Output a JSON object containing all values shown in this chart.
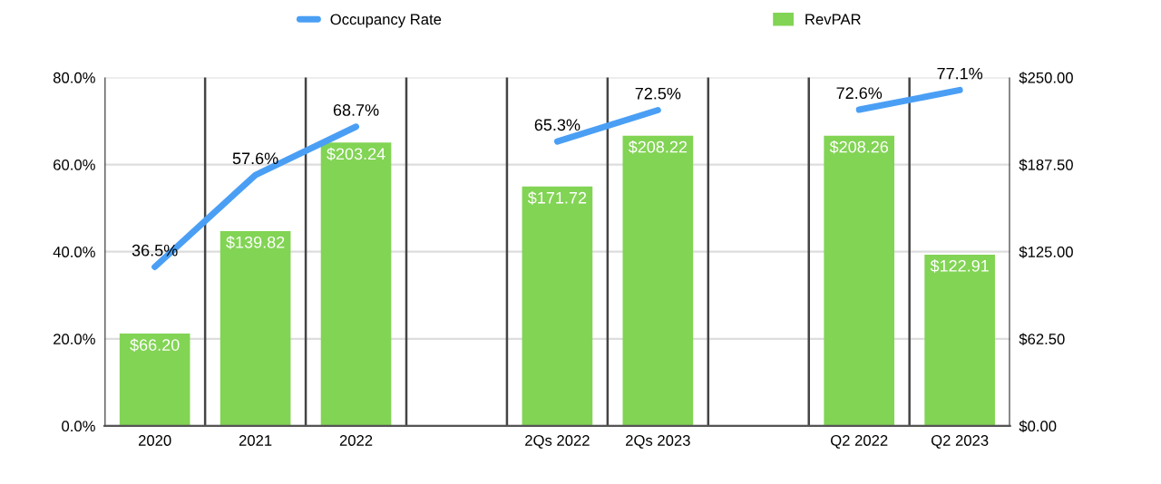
{
  "chart_data": {
    "type": "bar",
    "categories": [
      "2020",
      "2021",
      "2022",
      null,
      "2Qs 2022",
      "2Qs 2023",
      null,
      "Q2 2022",
      "Q2 2023"
    ],
    "series": [
      {
        "name": "Occupancy Rate",
        "type": "line",
        "color": "#4a9ff5",
        "values": [
          36.5,
          57.6,
          68.7,
          null,
          65.3,
          72.5,
          null,
          72.6,
          77.1
        ],
        "value_labels": [
          "36.5%",
          "57.6%",
          "68.7%",
          null,
          "65.3%",
          "72.5%",
          null,
          "72.6%",
          "77.1%"
        ]
      },
      {
        "name": "RevPAR",
        "axis": "y2",
        "color": "#82d454",
        "values": [
          66.2,
          139.82,
          203.24,
          null,
          171.72,
          208.22,
          null,
          208.26,
          122.91
        ],
        "value_labels": [
          "$66.20",
          "$139.82",
          "$203.24",
          null,
          "$171.72",
          "$208.22",
          null,
          "$208.26",
          "$122.91"
        ]
      }
    ],
    "ylim": [
      0,
      80
    ],
    "yticks": [
      {
        "value": 0,
        "label": "0.0%"
      },
      {
        "value": 20,
        "label": "20.0%"
      },
      {
        "value": 40,
        "label": "40.0%"
      },
      {
        "value": 60,
        "label": "60.0%"
      },
      {
        "value": 80,
        "label": "80.0%"
      }
    ],
    "y2lim": [
      0,
      250
    ],
    "y2ticks": [
      {
        "value": 0,
        "label": "$0.00"
      },
      {
        "value": 62.5,
        "label": "$62.50"
      },
      {
        "value": 125,
        "label": "$125.00"
      },
      {
        "value": 187.5,
        "label": "$187.50"
      },
      {
        "value": 250,
        "label": "$250.00"
      }
    ],
    "grid": true,
    "legend": "top",
    "marker": "none",
    "line_style": "solid"
  }
}
